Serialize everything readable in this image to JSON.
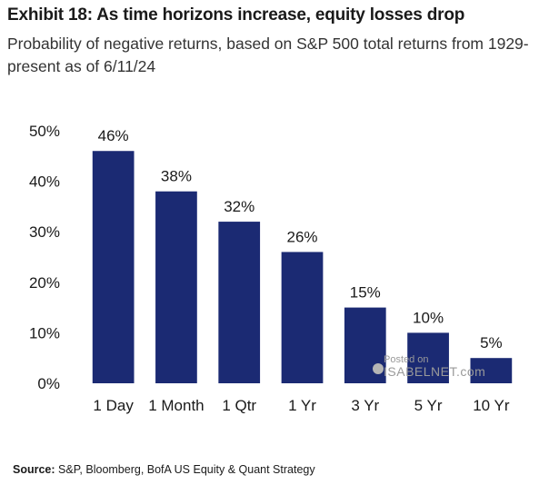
{
  "header": {
    "title": "Exhibit 18: As time horizons increase, equity losses drop",
    "subtitle": "Probability of negative returns, based on S&P 500 total returns from 1929-present as of 6/11/24"
  },
  "footer": {
    "source_label": "Source:",
    "source_text": "S&P, Bloomberg, BofA US Equity & Quant Strategy"
  },
  "watermark": {
    "line1": "Posted on",
    "line2": "ISABELNET.com"
  },
  "colors": {
    "bar": "#1b2a73",
    "text": "#1a1a1a"
  },
  "chart_data": {
    "type": "bar",
    "categories": [
      "1 Day",
      "1 Month",
      "1 Qtr",
      "1 Yr",
      "3 Yr",
      "5 Yr",
      "10 Yr"
    ],
    "values": [
      46,
      38,
      32,
      26,
      15,
      10,
      5
    ],
    "data_labels": [
      "46%",
      "38%",
      "32%",
      "26%",
      "15%",
      "10%",
      "5%"
    ],
    "yticks": [
      0,
      10,
      20,
      30,
      40,
      50
    ],
    "ytick_labels": [
      "0%",
      "10%",
      "20%",
      "30%",
      "40%",
      "50%"
    ],
    "ylim": [
      0,
      50
    ],
    "grid": false,
    "legend": "none"
  }
}
